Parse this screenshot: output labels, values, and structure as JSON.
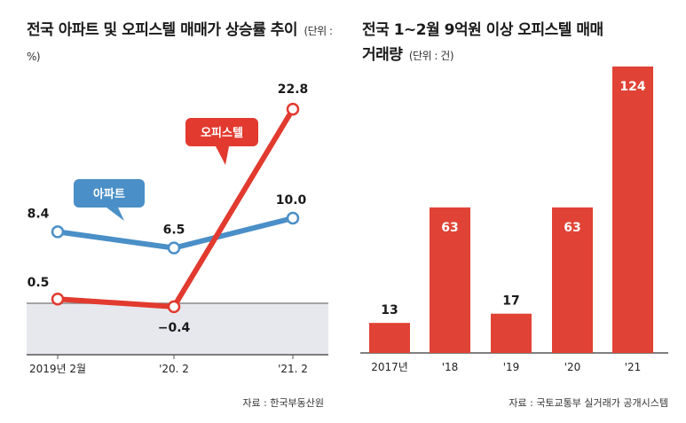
{
  "colors": {
    "apartment": "#4a8fc7",
    "officetel": "#e23a2f",
    "bar": "#e04335",
    "baseline_band": "#e7e8ee",
    "axis": "#555555"
  },
  "chart_data": [
    {
      "type": "line",
      "title": "전국 아파트 및 오피스텔 매매가 상승률 추이",
      "unit_label": "(단위 : %)",
      "categories": [
        "2019년 2월",
        "'20. 2",
        "'21. 2"
      ],
      "series": [
        {
          "name": "아파트",
          "values": [
            8.4,
            6.5,
            10.0
          ],
          "labels": [
            "8.4",
            "6.5",
            "10.0"
          ]
        },
        {
          "name": "오피스텔",
          "values": [
            0.5,
            -0.4,
            22.8
          ],
          "labels": [
            "0.5",
            "−0.4",
            "22.8"
          ]
        }
      ],
      "source": "자료 : 한국부동산원"
    },
    {
      "type": "bar",
      "title_line1": "전국 1~2월 9억원 이상 오피스텔 매매",
      "title_line2": "거래량",
      "unit_label": "(단위 : 건)",
      "categories": [
        "2017년",
        "'18",
        "'19",
        "'20",
        "'21"
      ],
      "values": [
        13,
        63,
        17,
        63,
        124
      ],
      "ylim": [
        0,
        130
      ],
      "source": "자료 : 국토교통부 실거래가 공개시스템"
    }
  ]
}
